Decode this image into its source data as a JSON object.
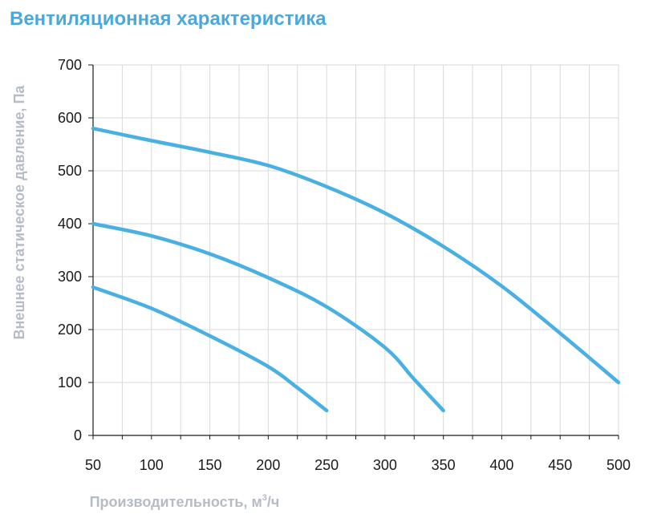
{
  "title": "Вентиляционная характеристика",
  "chart_data": {
    "type": "line",
    "title": "Вентиляционная характеристика",
    "xlabel_main": "Производительность, м",
    "xlabel_sup": "3",
    "xlabel_tail": "/ч",
    "ylabel": "Внешнее статическое давление, Па",
    "xlim": [
      50,
      500
    ],
    "ylim": [
      0,
      700
    ],
    "x_ticks": [
      50,
      100,
      150,
      200,
      250,
      300,
      350,
      400,
      450,
      500
    ],
    "y_ticks": [
      0,
      100,
      200,
      300,
      400,
      500,
      600,
      700
    ],
    "x_minor_step": 25,
    "grid": true,
    "line_color": "#49b0e3",
    "grid_color": "#d9d9d9",
    "series": [
      {
        "x": [
          50,
          100,
          150,
          200,
          225,
          250
        ],
        "y": [
          280,
          240,
          188,
          130,
          90,
          47
        ]
      },
      {
        "x": [
          50,
          100,
          150,
          200,
          250,
          300,
          325,
          350
        ],
        "y": [
          400,
          377,
          343,
          298,
          243,
          166,
          106,
          47
        ]
      },
      {
        "x": [
          50,
          100,
          150,
          200,
          250,
          300,
          350,
          400,
          450,
          500
        ],
        "y": [
          580,
          557,
          535,
          510,
          470,
          420,
          357,
          282,
          193,
          100
        ]
      }
    ]
  }
}
